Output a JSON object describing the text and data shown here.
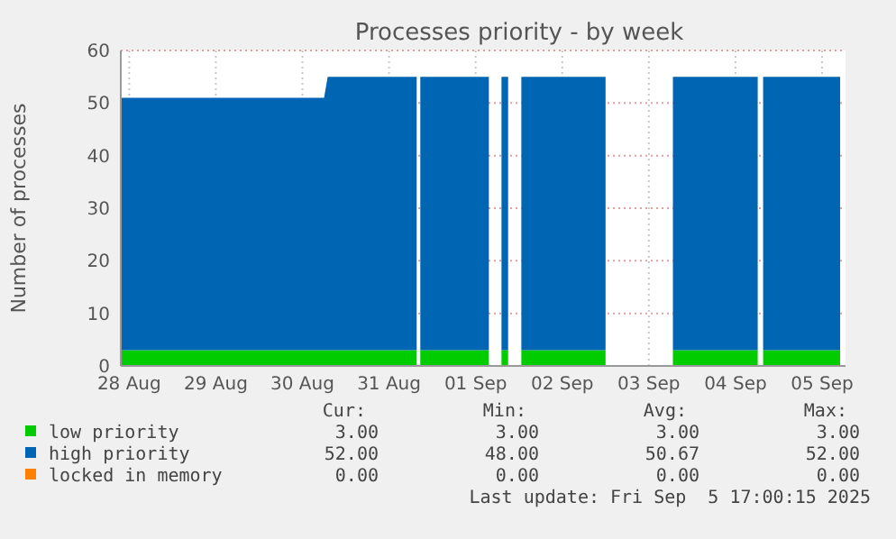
{
  "chart_data": {
    "type": "area",
    "title": "Processes priority - by week",
    "ylabel": "Number of processes",
    "stacked": true,
    "grid": true,
    "legend": "bottom",
    "x": [
      "2025-08-28T09:40",
      "2025-08-30T18:00",
      "2025-08-30T19:00",
      "2025-08-31T19:40",
      "2025-08-31T20:10",
      "2025-08-31T20:40",
      "2025-09-01T15:40",
      "2025-09-01T17:00",
      "2025-09-01T19:10",
      "2025-09-01T21:00",
      "2025-09-01T23:00",
      "2025-09-02T00:40",
      "2025-09-03T00:00",
      "2025-09-03T09:00",
      "2025-09-03T18:40",
      "2025-09-04T18:10",
      "2025-09-04T19:00",
      "2025-09-04T19:40",
      "2025-09-05T17:00"
    ],
    "series": [
      {
        "name": "low priority",
        "color": "#00cc00",
        "values": [
          3,
          3,
          3,
          3,
          null,
          3,
          3,
          null,
          3,
          3,
          null,
          3,
          3,
          null,
          3,
          3,
          null,
          3,
          3
        ]
      },
      {
        "name": "high priority",
        "color": "#0066b3",
        "values": [
          48,
          48,
          52,
          52,
          null,
          52,
          52,
          null,
          52,
          52,
          null,
          52,
          52,
          null,
          52,
          52,
          null,
          52,
          52
        ]
      },
      {
        "name": "locked in memory",
        "color": "#ff8000",
        "values": [
          null,
          null,
          null,
          null,
          null,
          null,
          null,
          null,
          null,
          null,
          null,
          null,
          null,
          null,
          null,
          null,
          null,
          null,
          null
        ]
      }
    ],
    "xlim": [
      "2025-08-28T09:40",
      "2025-09-05T18:30"
    ],
    "xticks": [
      {
        "value": "2025-08-28T12:00",
        "label": "28 Aug"
      },
      {
        "value": "2025-08-29T12:00",
        "label": "29 Aug"
      },
      {
        "value": "2025-08-30T12:00",
        "label": "30 Aug"
      },
      {
        "value": "2025-08-31T12:00",
        "label": "31 Aug"
      },
      {
        "value": "2025-09-01T12:00",
        "label": "01 Sep"
      },
      {
        "value": "2025-09-02T12:00",
        "label": "02 Sep"
      },
      {
        "value": "2025-09-03T12:00",
        "label": "03 Sep"
      },
      {
        "value": "2025-09-04T12:00",
        "label": "04 Sep"
      },
      {
        "value": "2025-09-05T12:00",
        "label": "05 Sep"
      }
    ],
    "ylim": [
      0,
      60
    ],
    "yticks": [
      0,
      10,
      20,
      30,
      40,
      50,
      60
    ],
    "annotations": [
      "Cur:",
      "Min:",
      "Avg:",
      "Max:",
      "3.00",
      "3.00",
      "3.00",
      "3.00",
      "52.00",
      "48.00",
      "50.67",
      "52.00",
      "0.00",
      "0.00",
      "0.00",
      "0.00",
      "Last update: Fri Sep  5 17:00:15 2025"
    ]
  }
}
